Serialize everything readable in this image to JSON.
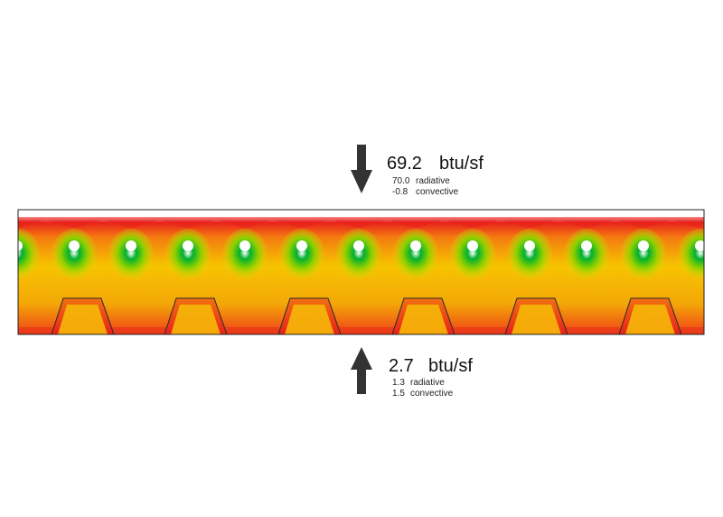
{
  "top_flux": {
    "total": "69.2",
    "unit": "btu/sf",
    "radiative_value": "70.0",
    "radiative_label": "radiative",
    "convective_value": "-0.8",
    "convective_label": "convective",
    "direction": "down"
  },
  "bottom_flux": {
    "total": "2.7",
    "unit": "btu/sf",
    "radiative_value": "1.3",
    "radiative_label": "radiative",
    "convective_value": "1.5",
    "convective_label": "convective",
    "direction": "up"
  },
  "colors": {
    "hot": "#e8201c",
    "warm": "#f47a10",
    "mid": "#f6c400",
    "cool": "#c8e000",
    "cold": "#00b030",
    "arrow": "#333333"
  }
}
